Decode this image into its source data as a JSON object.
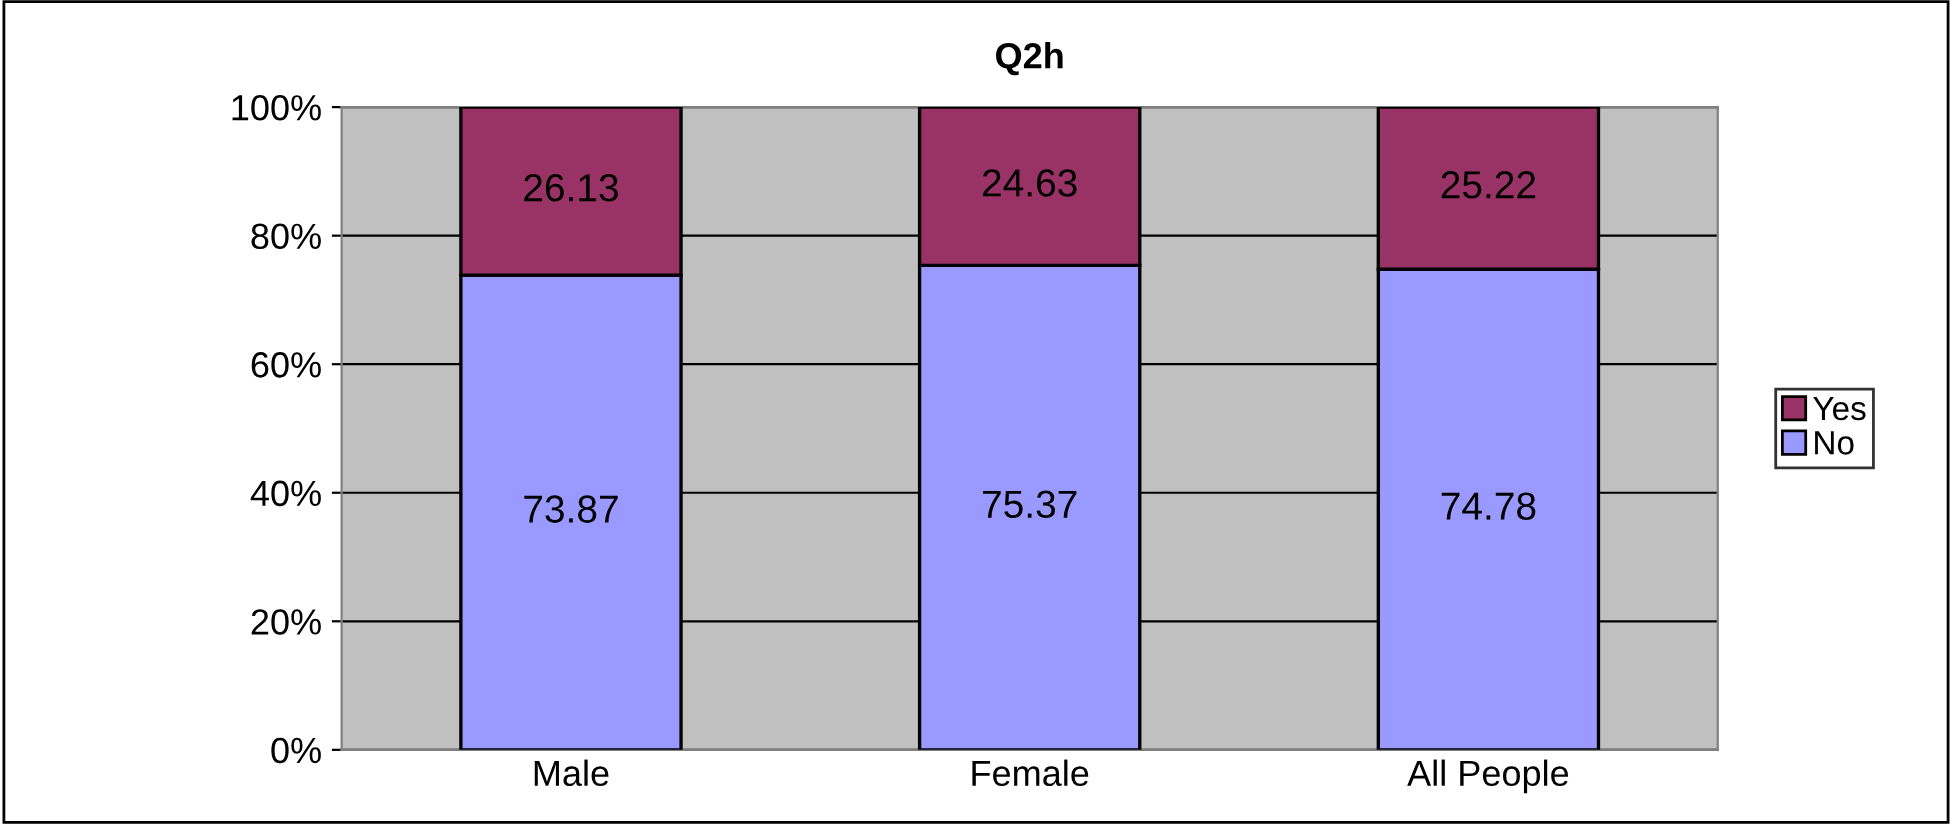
{
  "chart_data": {
    "type": "bar",
    "title": "Q2h",
    "stacked": true,
    "categories": [
      "Male",
      "Female",
      "All People"
    ],
    "series": [
      {
        "name": "No",
        "color": "#9999ff",
        "values": [
          73.87,
          75.37,
          74.78
        ]
      },
      {
        "name": "Yes",
        "color": "#993366",
        "values": [
          26.13,
          24.63,
          25.22
        ]
      }
    ],
    "ylim": [
      0,
      100
    ],
    "yticks": [
      {
        "value": 0,
        "label": "0%"
      },
      {
        "value": 20,
        "label": "20%"
      },
      {
        "value": 40,
        "label": "40%"
      },
      {
        "value": 60,
        "label": "60%"
      },
      {
        "value": 80,
        "label": "80%"
      },
      {
        "value": 100,
        "label": "100%"
      }
    ],
    "grid": "y",
    "legend": "right",
    "data_labels": true
  }
}
